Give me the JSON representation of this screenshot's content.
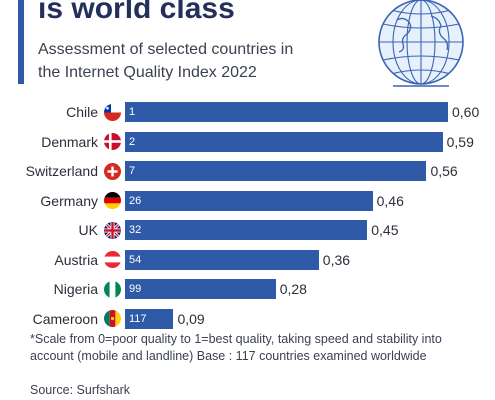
{
  "header": {
    "title": "is world class",
    "subtitle_line1": "Assessment of selected countries in",
    "subtitle_line2": "the Internet Quality Index 2022",
    "globe_icon": "globe-icon"
  },
  "chart_data": {
    "type": "bar",
    "orientation": "horizontal",
    "categories": [
      "Chile",
      "Denmark",
      "Switzerland",
      "Germany",
      "UK",
      "Austria",
      "Nigeria",
      "Cameroon"
    ],
    "values": [
      0.6,
      0.59,
      0.56,
      0.46,
      0.45,
      0.36,
      0.28,
      0.09
    ],
    "value_labels": [
      "0,60",
      "0,59",
      "0,56",
      "0,46",
      "0,45",
      "0,36",
      "0,28",
      "0,09"
    ],
    "ranks": [
      "1",
      "2",
      "7",
      "26",
      "32",
      "54",
      "99",
      "117"
    ],
    "flags": [
      "chile-flag-icon",
      "denmark-flag-icon",
      "switzerland-flag-icon",
      "germany-flag-icon",
      "uk-flag-icon",
      "austria-flag-icon",
      "nigeria-flag-icon",
      "cameroon-flag-icon"
    ],
    "xlim": [
      0,
      0.6
    ],
    "bar_color": "#2f5aa8",
    "grid": false
  },
  "footnote": "*Scale from 0=poor quality to 1=best quality, taking speed and stability into account (mobile and landline) Base : 117 countries examined worldwide",
  "source": "Source: Surfshark"
}
